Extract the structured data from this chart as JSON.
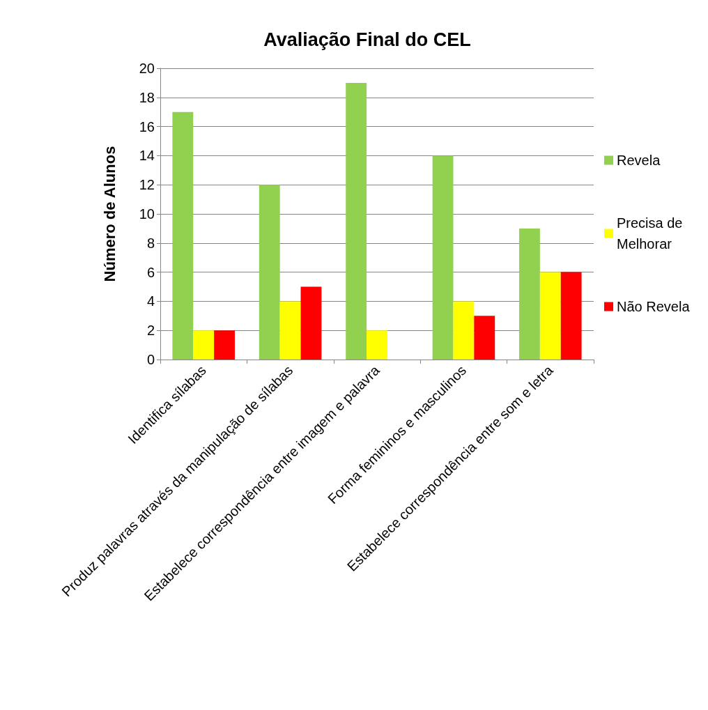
{
  "chart_data": {
    "type": "bar",
    "title": "Avaliação Final do CEL",
    "ylabel": "Número de Alunos",
    "categories": [
      "Identifica sílabas",
      "Produz palavras através da manipulação de sílabas",
      "Estabelece correspondência entre imagem e palavra",
      "Forma femininos e masculinos",
      "Estabelece correspondência entre som e letra"
    ],
    "series": [
      {
        "name": "Revela",
        "color": "#92d050",
        "values": [
          17,
          12,
          19,
          14,
          9
        ]
      },
      {
        "name": "Precisa de Melhorar",
        "color": "#ffff00",
        "values": [
          2,
          4,
          2,
          4,
          6
        ]
      },
      {
        "name": "Não Revela",
        "color": "#ff0000",
        "values": [
          2,
          5,
          0,
          3,
          6
        ]
      }
    ],
    "ylim": [
      0,
      20
    ],
    "yticks": [
      0,
      2,
      4,
      6,
      8,
      10,
      12,
      14,
      16,
      18,
      20
    ],
    "grid": "y",
    "legend": "right"
  }
}
